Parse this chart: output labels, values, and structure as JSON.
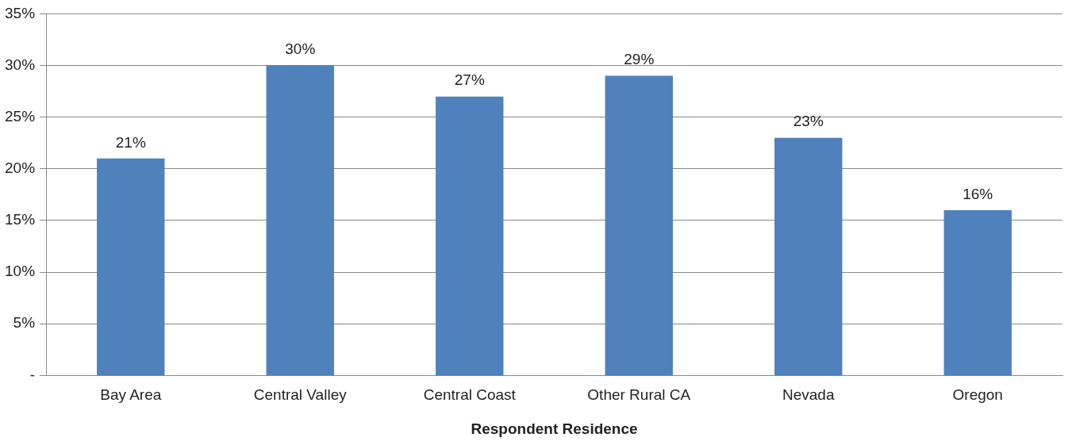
{
  "chart_data": {
    "type": "bar",
    "xlabel": "Respondent Residence",
    "categories": [
      "Bay Area",
      "Central Valley",
      "Central Coast",
      "Other Rural CA",
      "Nevada",
      "Oregon"
    ],
    "values": [
      21,
      30,
      27,
      29,
      23,
      16
    ],
    "color": "#4f81bd",
    "value_labels": [
      "21%",
      "30%",
      "27%",
      "29%",
      "23%",
      "16%"
    ],
    "ylim": [
      0,
      35
    ],
    "yticks": [
      {
        "value": 0,
        "label": "-"
      },
      {
        "value": 5,
        "label": "5%"
      },
      {
        "value": 10,
        "label": "10%"
      },
      {
        "value": 15,
        "label": "15%"
      },
      {
        "value": 20,
        "label": "20%"
      },
      {
        "value": 25,
        "label": "25%"
      },
      {
        "value": 30,
        "label": "30%"
      },
      {
        "value": 35,
        "label": "35%"
      }
    ],
    "grid": "y",
    "legend": false
  }
}
